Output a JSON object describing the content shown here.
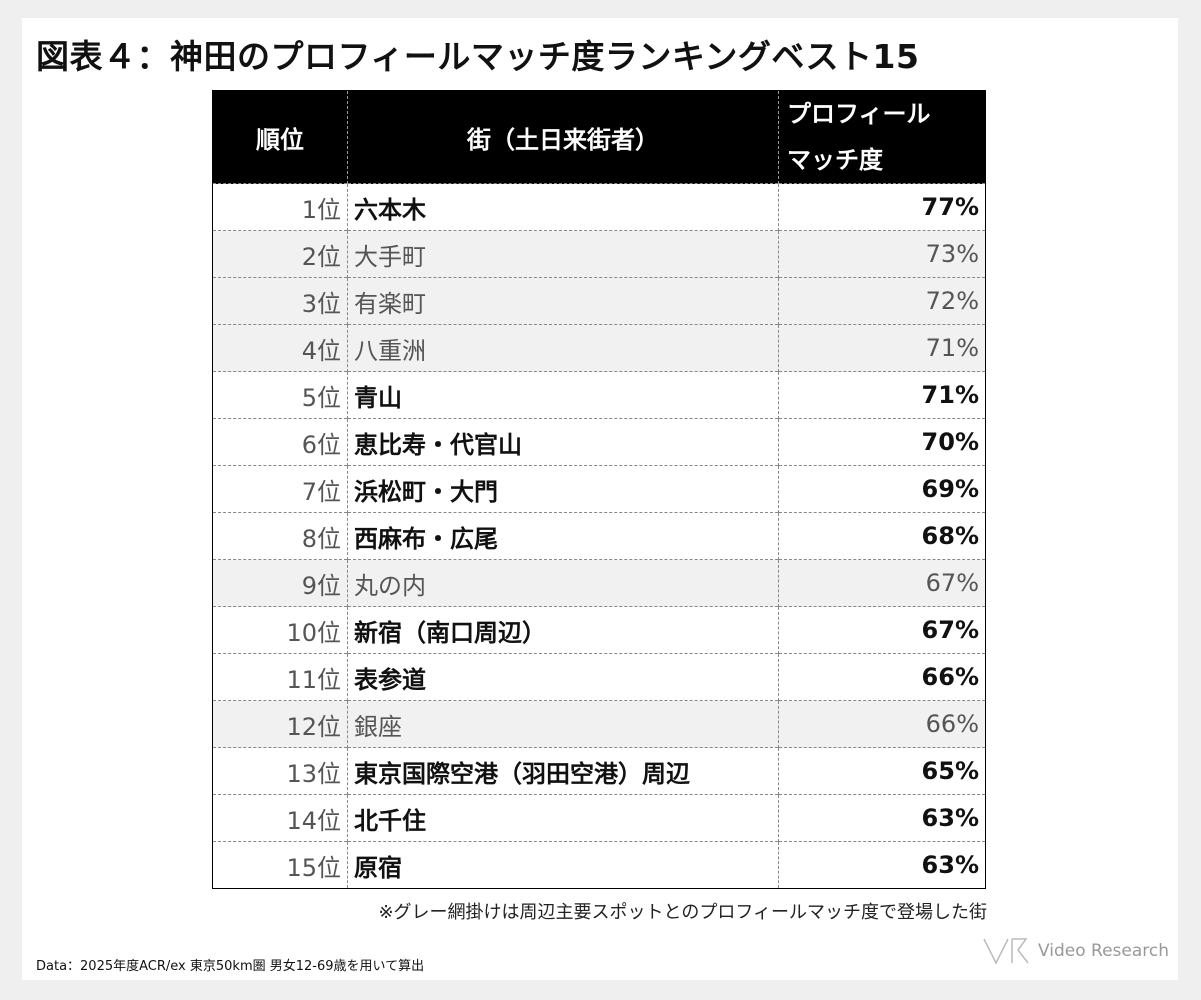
{
  "title": "図表４：神田のプロフィールマッチ度ランキングベスト15",
  "table": {
    "headers": {
      "rank": "順位",
      "town": "街（土日来街者）",
      "match": "プロフィール\nマッチ度"
    },
    "rows": [
      {
        "rank": "1位",
        "town": "六本木",
        "match": "77%",
        "shaded": false
      },
      {
        "rank": "2位",
        "town": "大手町",
        "match": "73%",
        "shaded": true
      },
      {
        "rank": "3位",
        "town": "有楽町",
        "match": "72%",
        "shaded": true
      },
      {
        "rank": "4位",
        "town": "八重洲",
        "match": "71%",
        "shaded": true
      },
      {
        "rank": "5位",
        "town": "青山",
        "match": "71%",
        "shaded": false
      },
      {
        "rank": "6位",
        "town": "恵比寿・代官山",
        "match": "70%",
        "shaded": false
      },
      {
        "rank": "7位",
        "town": "浜松町・大門",
        "match": "69%",
        "shaded": false
      },
      {
        "rank": "8位",
        "town": "西麻布・広尾",
        "match": "68%",
        "shaded": false
      },
      {
        "rank": "9位",
        "town": "丸の内",
        "match": "67%",
        "shaded": true
      },
      {
        "rank": "10位",
        "town": "新宿（南口周辺）",
        "match": "67%",
        "shaded": false
      },
      {
        "rank": "11位",
        "town": "表参道",
        "match": "66%",
        "shaded": false
      },
      {
        "rank": "12位",
        "town": "銀座",
        "match": "66%",
        "shaded": true
      },
      {
        "rank": "13位",
        "town": "東京国際空港（羽田空港）周辺",
        "match": "65%",
        "shaded": false
      },
      {
        "rank": "14位",
        "town": "北千住",
        "match": "63%",
        "shaded": false
      },
      {
        "rank": "15位",
        "town": "原宿",
        "match": "63%",
        "shaded": false
      }
    ]
  },
  "note": "※グレー網掛けは周辺主要スポットとのプロフィールマッチ度で登場した街",
  "source": "Data：2025年度ACR/ex 東京50km圏 男女12-69歳を用いて算出",
  "logo_text": "Video Research",
  "colors": {
    "header_bg": "#000000",
    "header_text": "#ffffff",
    "shaded_row": "#f1f1f1",
    "strong_text": "#111111",
    "muted_text": "#555555"
  },
  "chart_data": {
    "type": "table",
    "title": "図表４：神田のプロフィールマッチ度ランキングベスト15",
    "columns": [
      "順位",
      "街（土日来街者）",
      "プロフィールマッチ度"
    ],
    "rows": [
      [
        "1位",
        "六本木",
        "77%"
      ],
      [
        "2位",
        "大手町",
        "73%"
      ],
      [
        "3位",
        "有楽町",
        "72%"
      ],
      [
        "4位",
        "八重洲",
        "71%"
      ],
      [
        "5位",
        "青山",
        "71%"
      ],
      [
        "6位",
        "恵比寿・代官山",
        "70%"
      ],
      [
        "7位",
        "浜松町・大門",
        "69%"
      ],
      [
        "8位",
        "西麻布・広尾",
        "68%"
      ],
      [
        "9位",
        "丸の内",
        "67%"
      ],
      [
        "10位",
        "新宿（南口周辺）",
        "67%"
      ],
      [
        "11位",
        "表参道",
        "66%"
      ],
      [
        "12位",
        "銀座",
        "66%"
      ],
      [
        "13位",
        "東京国際空港（羽田空港）周辺",
        "65%"
      ],
      [
        "14位",
        "北千住",
        "63%"
      ],
      [
        "15位",
        "原宿",
        "63%"
      ]
    ],
    "shaded_rows": [
      "2位",
      "3位",
      "4位",
      "9位",
      "12位"
    ]
  }
}
